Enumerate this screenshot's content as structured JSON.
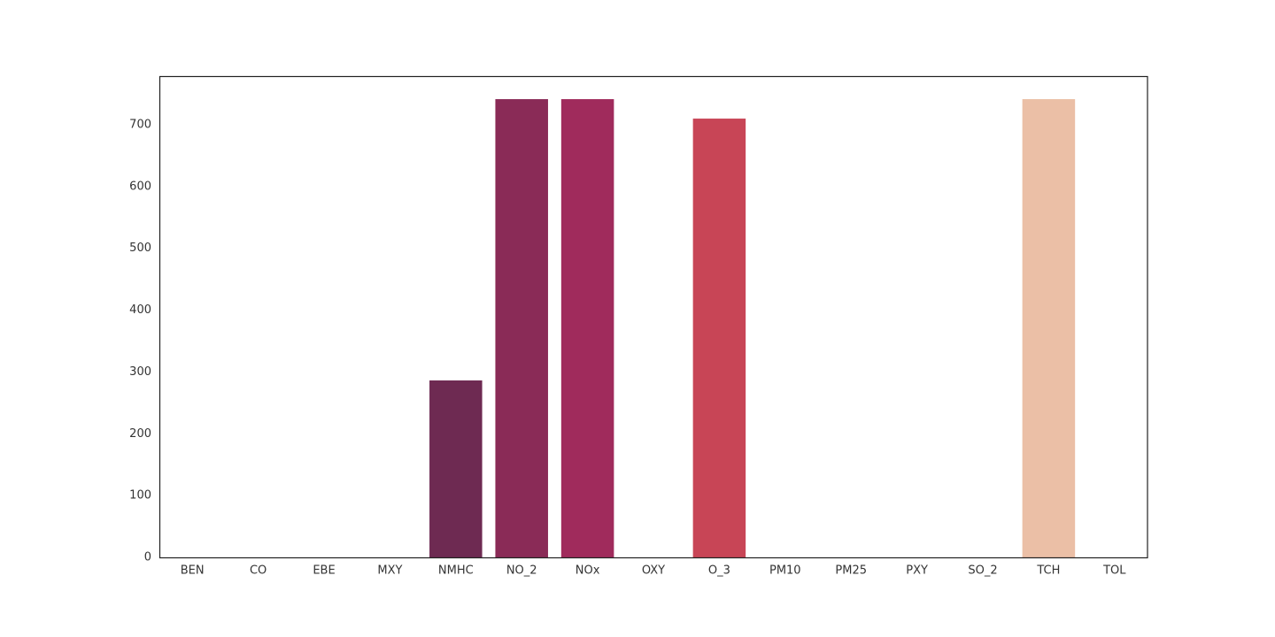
{
  "chart_data": {
    "type": "bar",
    "categories": [
      "BEN",
      "CO",
      "EBE",
      "MXY",
      "NMHC",
      "NO_2",
      "NOx",
      "OXY",
      "O_3",
      "PM10",
      "PM25",
      "PXY",
      "SO_2",
      "TCH",
      "TOL"
    ],
    "values": [
      0,
      0,
      0,
      0,
      286.3,
      741.5,
      741.5,
      0,
      710,
      0,
      0,
      0,
      0,
      741.5,
      0
    ],
    "colors": [
      "#2a1a3a",
      "#3c1d48",
      "#4e2150",
      "#5f2553",
      "#6e2a52",
      "#8a2b57",
      "#a02b5c",
      "#b7305a",
      "#c84556",
      "#de5a4f",
      "#ec7858",
      "#f19a73",
      "#f0b08f",
      "#ebbfa6",
      "#f6e0d0"
    ],
    "ylim": [
      0,
      778.8
    ],
    "yticks": [
      0,
      100,
      200,
      300,
      400,
      500,
      600,
      700
    ]
  }
}
